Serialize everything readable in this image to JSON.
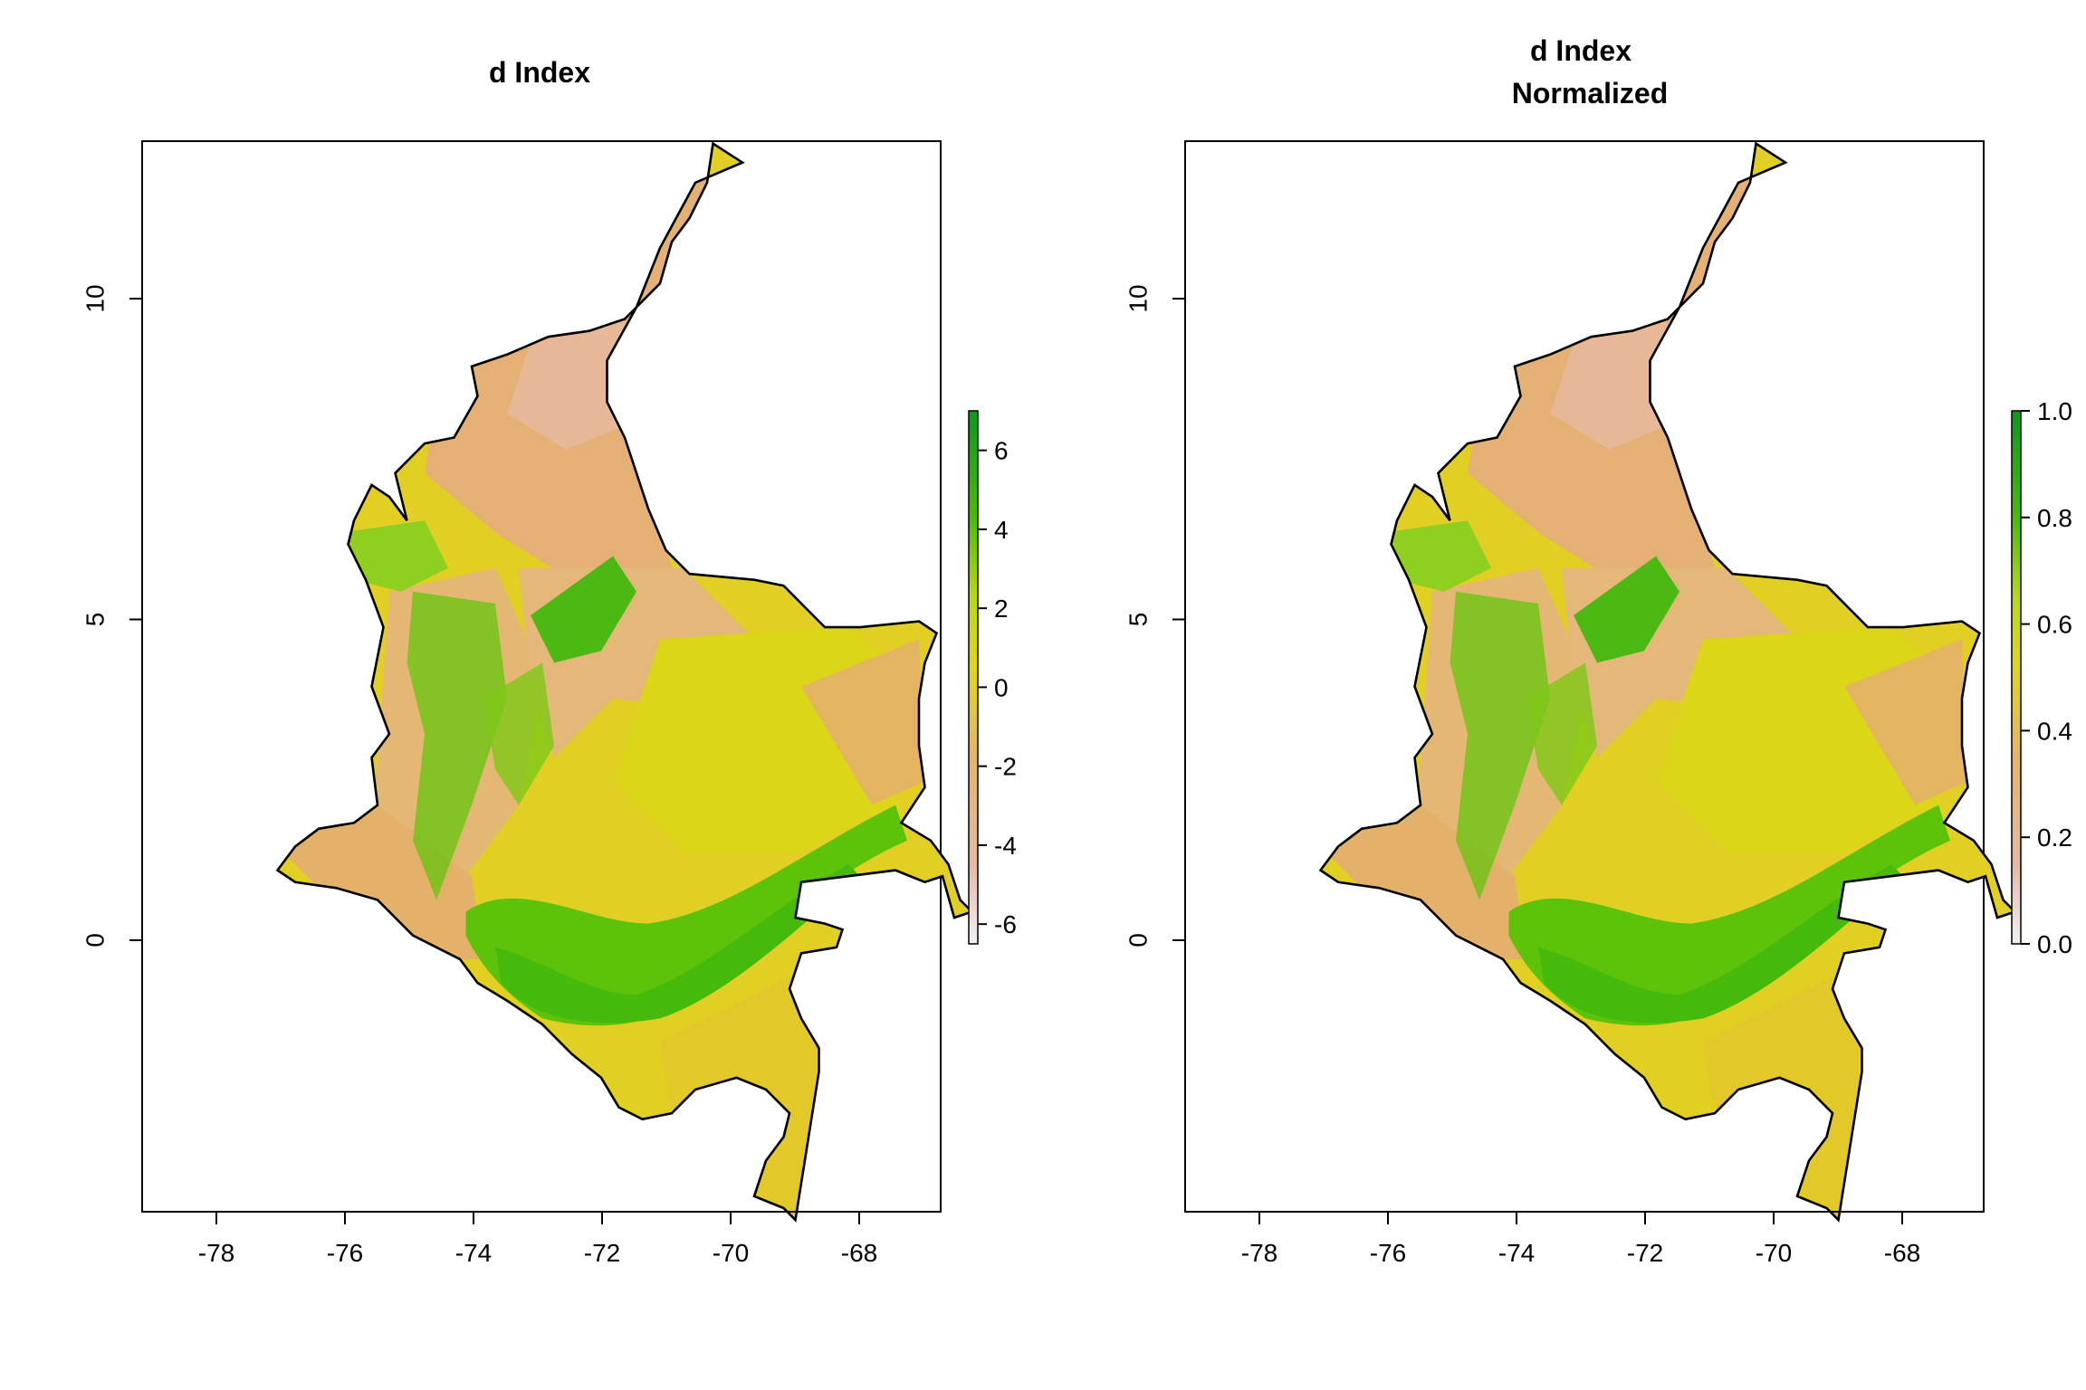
{
  "palette": {
    "low": "#f2f2f2",
    "low_mid": "#e6b8a4",
    "mid_low": "#e4b66a",
    "mid": "#e2d41c",
    "mid_high": "#a8d61a",
    "high": "#4cba0a",
    "top": "#0a9a1a",
    "border": "#000000"
  },
  "panels": [
    {
      "id": "d-index",
      "title_lines": [
        "d Index"
      ],
      "x_axis": {
        "ticks": [
          -78,
          -76,
          -74,
          -72,
          -70,
          -68
        ],
        "labels": [
          "-78",
          "-76",
          "-74",
          "-72",
          "-70",
          "-68"
        ]
      },
      "y_axis": {
        "ticks": [
          0,
          5,
          10
        ],
        "labels": [
          "0",
          "5",
          "10"
        ]
      },
      "legend": {
        "min": -6.5,
        "max": 7,
        "ticks": [
          6,
          4,
          2,
          0,
          -2,
          -4,
          -6
        ],
        "labels": [
          "6",
          "4",
          "2",
          "0",
          "-2",
          "-4",
          "-6"
        ]
      }
    },
    {
      "id": "d-index-normalized",
      "title_lines": [
        "d Index",
        "Normalized"
      ],
      "x_axis": {
        "ticks": [
          -78,
          -76,
          -74,
          -72,
          -70,
          -68
        ],
        "labels": [
          "-78",
          "-76",
          "-74",
          "-72",
          "-70",
          "-68"
        ]
      },
      "y_axis": {
        "ticks": [
          0,
          5,
          10
        ],
        "labels": [
          "0",
          "5",
          "10"
        ]
      },
      "legend": {
        "min": 0,
        "max": 1,
        "ticks": [
          1.0,
          0.8,
          0.6,
          0.4,
          0.2,
          0.0
        ],
        "labels": [
          "1.0",
          "0.8",
          "0.6",
          "0.4",
          "0.2",
          "0.0"
        ]
      }
    }
  ]
}
